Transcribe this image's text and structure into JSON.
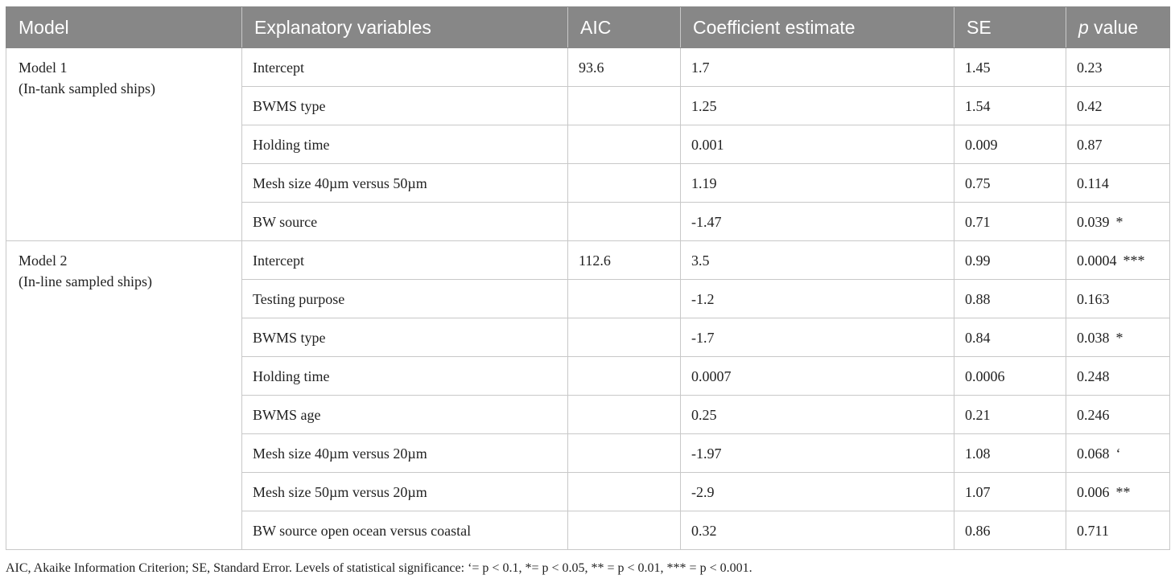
{
  "headers": {
    "model": "Model",
    "explanatory": "Explanatory variables",
    "aic": "AIC",
    "coef": "Coefficient estimate",
    "se": "SE",
    "p_italic": "p",
    "p_rest": " value"
  },
  "models": [
    {
      "name": "Model 1",
      "sub": "(In-tank sampled ships)",
      "aic": "93.6",
      "rows": [
        {
          "var": "Intercept",
          "coef": "1.7",
          "se": "1.45",
          "p": "0.23",
          "sig": ""
        },
        {
          "var": "BWMS type",
          "coef": "1.25",
          "se": "1.54",
          "p": "0.42",
          "sig": ""
        },
        {
          "var": "Holding time",
          "coef": "0.001",
          "se": "0.009",
          "p": "0.87",
          "sig": ""
        },
        {
          "var": "Mesh size 40µm versus 50µm",
          "coef": "1.19",
          "se": "0.75",
          "p": "0.114",
          "sig": ""
        },
        {
          "var": "BW source",
          "coef": "-1.47",
          "se": "0.71",
          "p": "0.039",
          "sig": "*"
        }
      ]
    },
    {
      "name": "Model 2",
      "sub": "(In-line sampled ships)",
      "aic": "112.6",
      "rows": [
        {
          "var": "Intercept",
          "coef": "3.5",
          "se": "0.99",
          "p": "0.0004",
          "sig": "***"
        },
        {
          "var": "Testing purpose",
          "coef": "-1.2",
          "se": "0.88",
          "p": "0.163",
          "sig": ""
        },
        {
          "var": "BWMS type",
          "coef": "-1.7",
          "se": "0.84",
          "p": "0.038",
          "sig": "*"
        },
        {
          "var": "Holding time",
          "coef": "0.0007",
          "se": "0.0006",
          "p": "0.248",
          "sig": ""
        },
        {
          "var": "BWMS age",
          "coef": "0.25",
          "se": "0.21",
          "p": "0.246",
          "sig": ""
        },
        {
          "var": "Mesh size 40µm versus 20µm",
          "coef": "-1.97",
          "se": "1.08",
          "p": "0.068",
          "sig": "‘"
        },
        {
          "var": "Mesh size 50µm versus 20µm",
          "coef": "-2.9",
          "se": "1.07",
          "p": "0.006",
          "sig": "**"
        },
        {
          "var": "BW source open ocean versus coastal",
          "coef": "0.32",
          "se": "0.86",
          "p": "0.711",
          "sig": ""
        }
      ]
    }
  ],
  "footnote": "AIC, Akaike Information Criterion; SE, Standard Error. Levels of statistical significance: ‘= p < 0.1, *= p < 0.05, ** = p < 0.01, *** = p < 0.001."
}
